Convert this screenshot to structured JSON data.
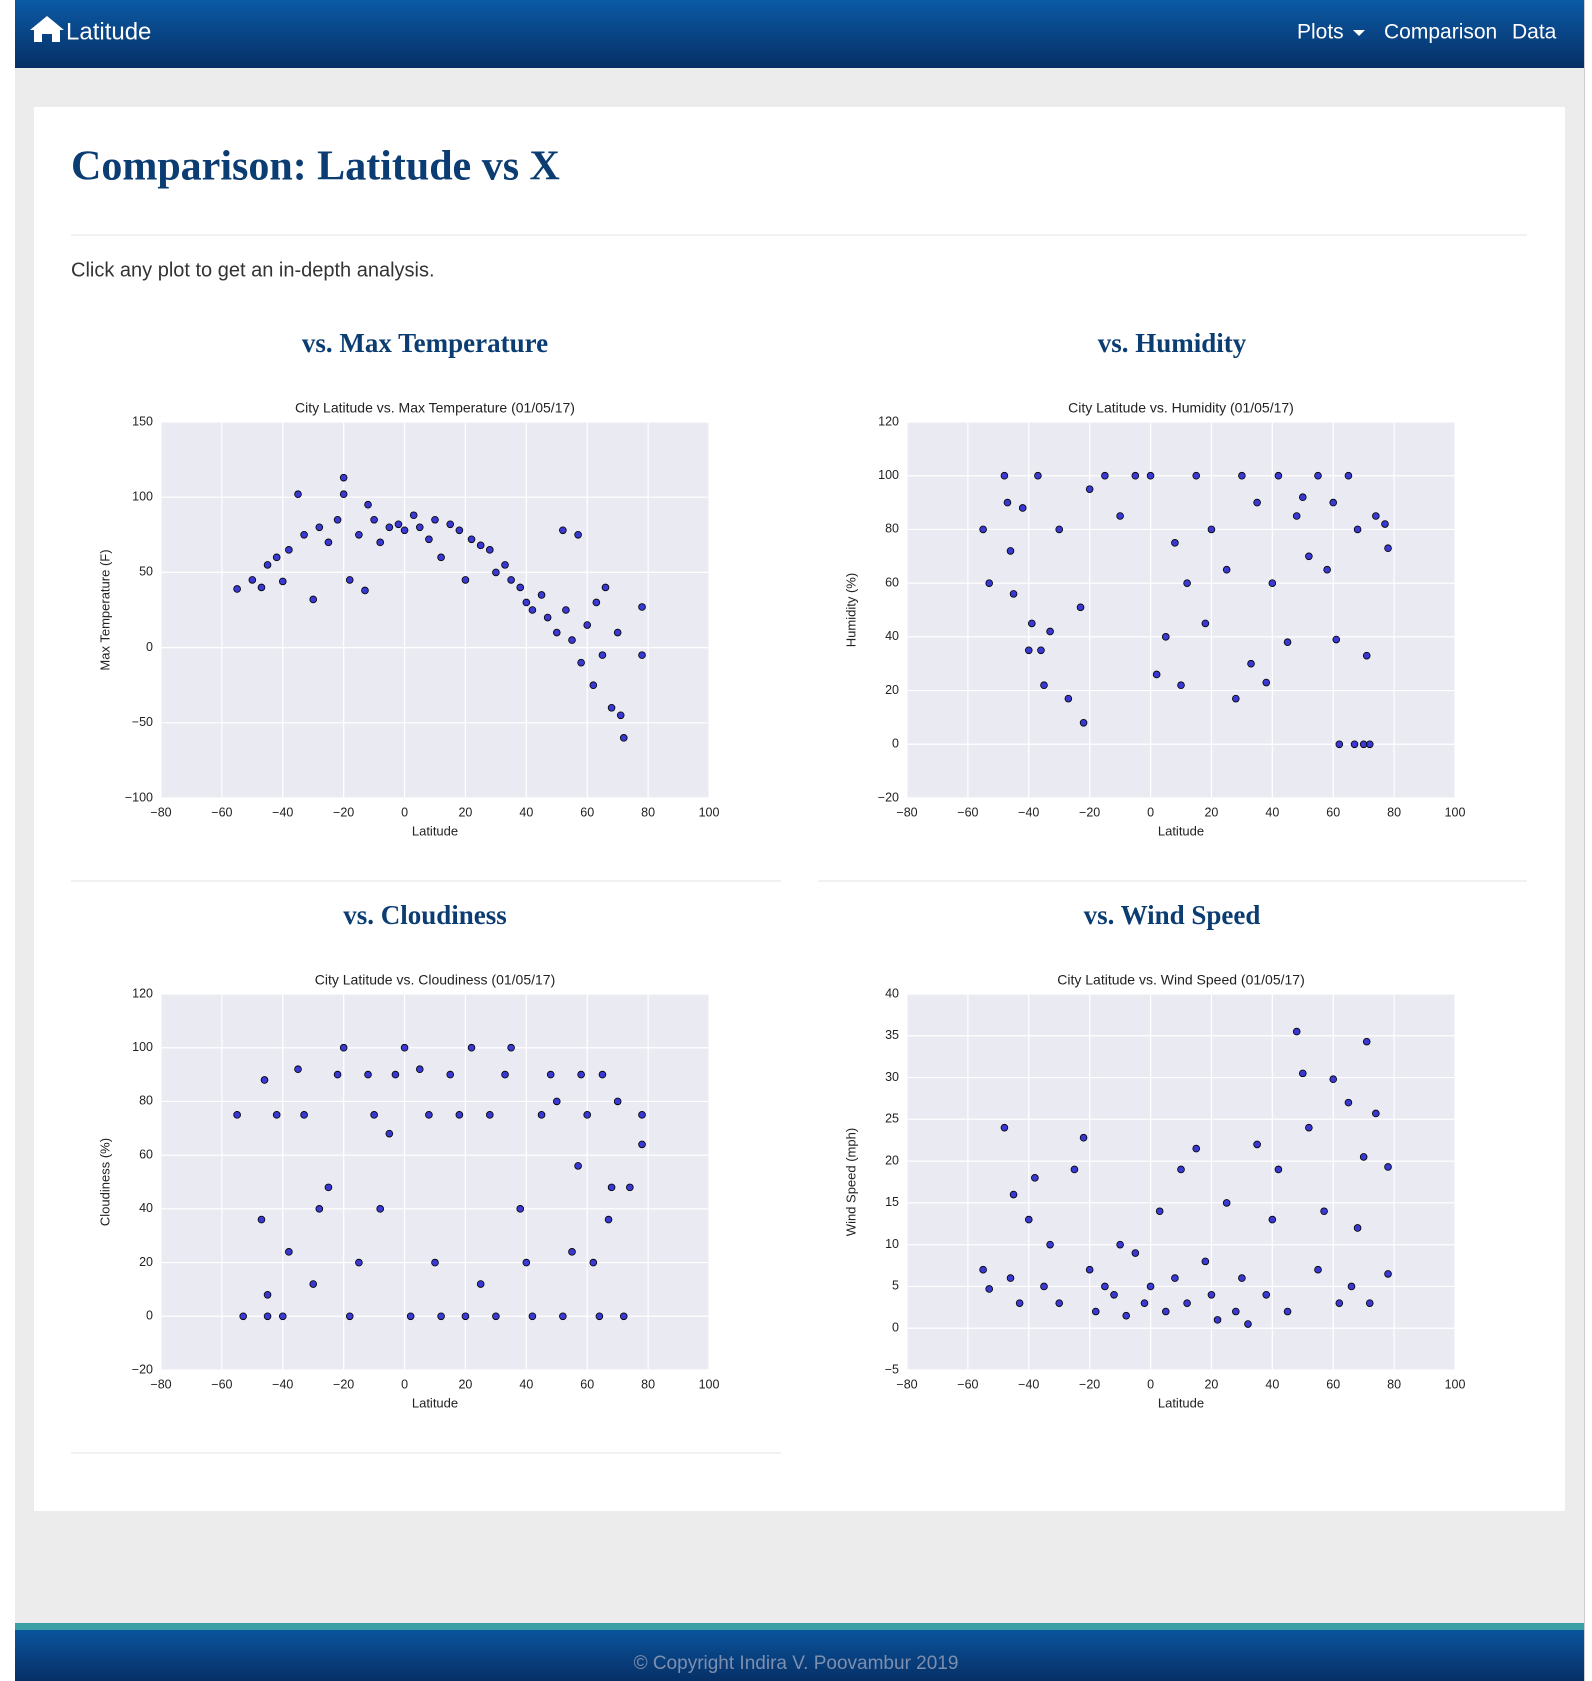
{
  "navbar": {
    "brand": "Latitude",
    "links": [
      "Plots",
      "Comparison",
      "Data"
    ]
  },
  "header": {
    "title": "Comparison: Latitude vs X",
    "intro": "Click any plot to get an in-depth analysis."
  },
  "sections": [
    "vs. Max Temperature",
    "vs. Humidity",
    "vs. Cloudiness",
    "vs. Wind Speed"
  ],
  "chart_data": [
    {
      "type": "scatter",
      "title": "City Latitude vs. Max Temperature (01/05/17)",
      "x_label": "Latitude",
      "y_label": "Max Temperature (F)",
      "color": "#1a1acc",
      "grid": true,
      "x": [
        -55,
        -50,
        -45,
        -42,
        -38,
        -35,
        -33,
        -30,
        -28,
        -25,
        -22,
        -20,
        -20,
        -18,
        -15,
        -12,
        -10,
        -8,
        -5,
        -2,
        0,
        3,
        5,
        8,
        10,
        12,
        15,
        18,
        20,
        22,
        25,
        28,
        30,
        33,
        35,
        38,
        40,
        42,
        45,
        47,
        50,
        52,
        53,
        55,
        57,
        58,
        60,
        62,
        63,
        65,
        66,
        68,
        70,
        71,
        72,
        78,
        78,
        -40,
        -47,
        -13
      ],
      "values": [
        39,
        45,
        55,
        60,
        65,
        102,
        75,
        32,
        80,
        70,
        85,
        113,
        102,
        45,
        75,
        95,
        85,
        70,
        80,
        82,
        78,
        88,
        80,
        72,
        85,
        60,
        82,
        78,
        45,
        72,
        68,
        65,
        50,
        55,
        45,
        40,
        30,
        25,
        35,
        20,
        10,
        78,
        25,
        5,
        75,
        -10,
        15,
        -25,
        30,
        -5,
        40,
        -40,
        10,
        -45,
        -60,
        27,
        -5,
        44,
        40,
        38
      ],
      "xlim": [
        -80,
        100
      ],
      "xticks": [
        {
          "value": -80,
          "label": "−80"
        },
        {
          "value": -60,
          "label": "−60"
        },
        {
          "value": -40,
          "label": "−40"
        },
        {
          "value": -20,
          "label": "−20"
        },
        0,
        20,
        40,
        60,
        80,
        100
      ],
      "ylim": [
        -100,
        150
      ],
      "yticks": [
        {
          "value": -100,
          "label": "−100"
        },
        {
          "value": -50,
          "label": "−50"
        },
        0,
        50,
        100,
        150
      ]
    },
    {
      "type": "scatter",
      "title": "City Latitude vs. Humidity (01/05/17)",
      "x_label": "Latitude",
      "y_label": "Humidity (%)",
      "color": "#1a1acc",
      "grid": true,
      "x": [
        -55,
        -53,
        -48,
        -47,
        -46,
        -45,
        -42,
        -40,
        -39,
        -37,
        -36,
        -35,
        -33,
        -30,
        -27,
        -23,
        -22,
        -20,
        -15,
        -10,
        -5,
        0,
        2,
        5,
        8,
        10,
        12,
        15,
        18,
        20,
        25,
        28,
        30,
        33,
        35,
        38,
        40,
        42,
        45,
        48,
        50,
        52,
        55,
        58,
        60,
        61,
        62,
        65,
        67,
        68,
        70,
        71,
        72,
        74,
        78,
        77
      ],
      "values": [
        80,
        60,
        100,
        90,
        72,
        56,
        88,
        35,
        45,
        100,
        35,
        22,
        42,
        80,
        17,
        51,
        8,
        95,
        100,
        85,
        100,
        100,
        26,
        40,
        75,
        22,
        60,
        100,
        45,
        80,
        65,
        17,
        100,
        30,
        90,
        23,
        60,
        100,
        38,
        85,
        92,
        70,
        100,
        65,
        90,
        39,
        0,
        100,
        0,
        80,
        0,
        33,
        0,
        85,
        73,
        82
      ],
      "xlim": [
        -80,
        100
      ],
      "xticks": [
        {
          "value": -80,
          "label": "−80"
        },
        {
          "value": -60,
          "label": "−60"
        },
        {
          "value": -40,
          "label": "−40"
        },
        {
          "value": -20,
          "label": "−20"
        },
        0,
        20,
        40,
        60,
        80,
        100
      ],
      "ylim": [
        -20,
        120
      ],
      "yticks": [
        {
          "value": -20,
          "label": "−20"
        },
        0,
        20,
        40,
        60,
        80,
        100,
        120
      ]
    },
    {
      "type": "scatter",
      "title": "City Latitude vs. Cloudiness (01/05/17)",
      "x_label": "Latitude",
      "y_label": "Cloudiness (%)",
      "color": "#1a1acc",
      "grid": true,
      "x": [
        -55,
        -53,
        -47,
        -46,
        -45,
        -45,
        -42,
        -40,
        -38,
        -35,
        -33,
        -30,
        -28,
        -25,
        -22,
        -20,
        -18,
        -15,
        -12,
        -10,
        -8,
        -5,
        -3,
        0,
        2,
        5,
        8,
        10,
        12,
        15,
        18,
        20,
        22,
        25,
        28,
        30,
        33,
        35,
        38,
        40,
        42,
        45,
        48,
        50,
        52,
        55,
        57,
        58,
        60,
        62,
        64,
        65,
        67,
        68,
        70,
        72,
        74,
        78,
        78
      ],
      "values": [
        75,
        0,
        36,
        88,
        8,
        0,
        75,
        0,
        24,
        92,
        75,
        12,
        40,
        48,
        90,
        100,
        0,
        20,
        90,
        75,
        40,
        68,
        90,
        100,
        0,
        92,
        75,
        20,
        0,
        90,
        75,
        0,
        100,
        12,
        75,
        0,
        90,
        100,
        40,
        20,
        0,
        75,
        90,
        80,
        0,
        24,
        56,
        90,
        75,
        20,
        0,
        90,
        36,
        48,
        80,
        0,
        48,
        75,
        64
      ],
      "xlim": [
        -80,
        100
      ],
      "xticks": [
        {
          "value": -80,
          "label": "−80"
        },
        {
          "value": -60,
          "label": "−60"
        },
        {
          "value": -40,
          "label": "−40"
        },
        {
          "value": -20,
          "label": "−20"
        },
        0,
        20,
        40,
        60,
        80,
        100
      ],
      "ylim": [
        -20,
        120
      ],
      "yticks": [
        {
          "value": -20,
          "label": "−20"
        },
        0,
        20,
        40,
        60,
        80,
        100,
        120
      ]
    },
    {
      "type": "scatter",
      "title": "City Latitude vs. Wind Speed (01/05/17)",
      "x_label": "Latitude",
      "y_label": "Wind Speed (mph)",
      "color": "#1a1acc",
      "grid": true,
      "x": [
        -55,
        -53,
        -48,
        -46,
        -45,
        -43,
        -40,
        -38,
        -35,
        -33,
        -30,
        -25,
        -22,
        -20,
        -18,
        -15,
        -12,
        -10,
        -8,
        -5,
        -2,
        0,
        3,
        5,
        8,
        10,
        12,
        15,
        18,
        20,
        22,
        25,
        28,
        30,
        32,
        35,
        38,
        40,
        42,
        45,
        48,
        50,
        52,
        55,
        57,
        60,
        62,
        65,
        66,
        68,
        70,
        71,
        72,
        74,
        78,
        78
      ],
      "values": [
        7,
        4.7,
        24,
        6,
        16,
        3,
        13,
        18,
        5,
        10,
        3,
        19,
        22.8,
        7,
        2,
        5,
        4,
        10,
        1.5,
        9,
        3,
        5,
        14,
        2,
        6,
        19,
        3,
        21.5,
        8,
        4,
        1,
        15,
        2,
        6,
        0.5,
        22,
        4,
        13,
        19,
        2,
        35.5,
        30.5,
        24,
        7,
        14,
        29.8,
        3,
        27,
        5,
        12,
        20.5,
        34.3,
        3,
        25.7,
        6.5,
        19.3
      ],
      "xlim": [
        -80,
        100
      ],
      "xticks": [
        {
          "value": -80,
          "label": "−80"
        },
        {
          "value": -60,
          "label": "−60"
        },
        {
          "value": -40,
          "label": "−40"
        },
        {
          "value": -20,
          "label": "−20"
        },
        0,
        20,
        40,
        60,
        80,
        100
      ],
      "ylim": [
        -5,
        40
      ],
      "yticks": [
        {
          "value": -5,
          "label": "−5"
        },
        0,
        5,
        10,
        15,
        20,
        25,
        30,
        35,
        40
      ]
    }
  ],
  "footer": {
    "copyright": "© Copyright Indira V. Poovambur 2019"
  }
}
